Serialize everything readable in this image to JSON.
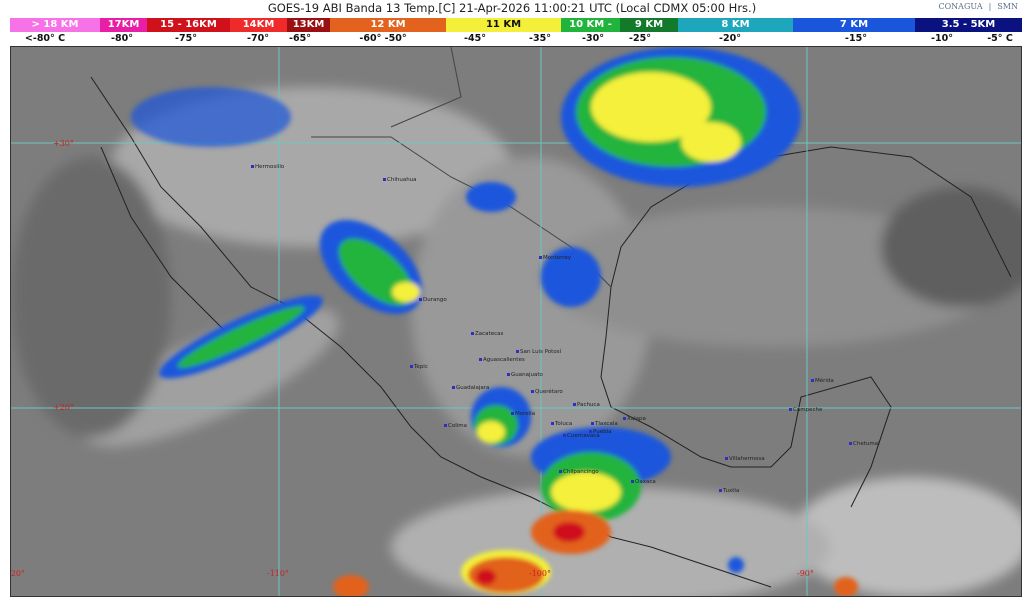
{
  "header": {
    "title": "GOES-19 ABI Banda 13 Temp.[C] 21-Apr-2026 11:00:21 UTC (Local CDMX  05:00 Hrs.)",
    "logos": [
      "CONAGUA",
      "SMN"
    ]
  },
  "legend": [
    {
      "label": "> 18 KM",
      "color": "#f772e6"
    },
    {
      "label": "17KM",
      "color": "#e81fa6"
    },
    {
      "label": "15 - 16KM",
      "color": "#d0101a"
    },
    {
      "label": "14KM",
      "color": "#ef2a2a"
    },
    {
      "label": "13KM",
      "color": "#9a0f12"
    },
    {
      "label": "12 KM",
      "color": "#e2621e"
    },
    {
      "label": "11 KM",
      "color": "#f4f03a"
    },
    {
      "label": "10 KM -",
      "color": "#20b43c"
    },
    {
      "label": "9 KM",
      "color": "#127a2a"
    },
    {
      "label": "8 KM",
      "color": "#1ea6bc"
    },
    {
      "label": "7 KM",
      "color": "#1a56dc"
    },
    {
      "label": "3.5 - 5KM",
      "color": "#0a1280"
    }
  ],
  "temperatures": [
    "<-80° C",
    "-80°",
    "-75°",
    "-70°",
    "-65°",
    "-60°  -50°",
    "-45°",
    "-35°",
    "-30°",
    "-25°",
    "-20°",
    "-15°",
    "-10°",
    "-5°  C"
  ],
  "grid_labels": {
    "latitudes": [
      "+30°",
      "+20°"
    ],
    "longitudes": [
      "-120°",
      "-110°",
      "-100°",
      "-90°"
    ]
  },
  "cities": [
    "Hermosillo",
    "Chihuahua",
    "Durango",
    "Monterrey",
    "Zacatecas",
    "San Luis Potosí",
    "Aguascalientes",
    "Tepic",
    "Guadalajara",
    "Guanajuato",
    "Querétaro",
    "Pachuca",
    "Morelia",
    "Colima",
    "Toluca",
    "Tlaxcala",
    "Puebla",
    "Cuernavaca",
    "Xalapa",
    "Chilpancingo",
    "Oaxaca",
    "Villahermosa",
    "Tuxtla",
    "Mérida",
    "Campeche",
    "Chetumal"
  ]
}
